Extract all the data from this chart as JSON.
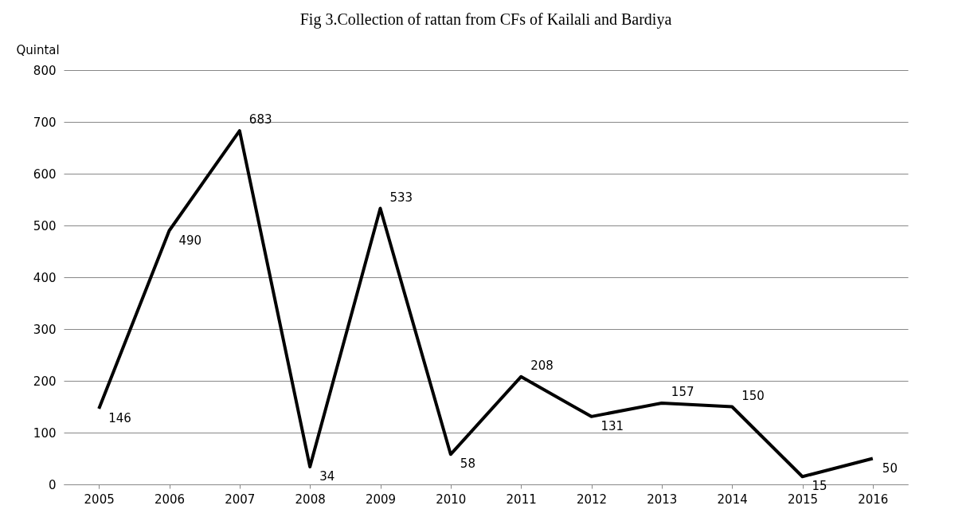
{
  "chart_data": {
    "type": "line",
    "title": "Fig 3.Collection of rattan from CFs of Kailali and Bardiya",
    "ylabel": "Quintal",
    "categories": [
      "2005",
      "2006",
      "2007",
      "2008",
      "2009",
      "2010",
      "2011",
      "2012",
      "2013",
      "2014",
      "2015",
      "2016"
    ],
    "series": [
      {
        "color": "#000000",
        "values": [
          146,
          490,
          683,
          34,
          533,
          58,
          208,
          131,
          157,
          150,
          15,
          50
        ]
      }
    ],
    "ylim": [
      0,
      800
    ],
    "yticks": [
      0,
      100,
      200,
      300,
      400,
      500,
      600,
      700,
      800
    ],
    "grid": "y",
    "data_labels": true,
    "line_style": "solid"
  }
}
